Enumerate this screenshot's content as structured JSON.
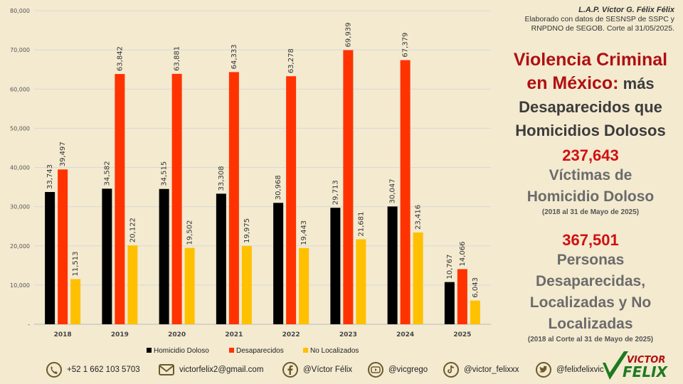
{
  "chart_data": {
    "type": "bar",
    "categories": [
      "2018",
      "2019",
      "2020",
      "2021",
      "2022",
      "2023",
      "2024",
      "2025"
    ],
    "series": [
      {
        "name": "Homicidio Doloso",
        "color": "#000000",
        "values": [
          33743,
          34582,
          34515,
          33308,
          30968,
          29713,
          30047,
          10767
        ],
        "labels": [
          "33,743",
          "34,582",
          "34,515",
          "33,308",
          "30,968",
          "29,713",
          "30,047",
          "10,767"
        ]
      },
      {
        "name": "Desaparecidos",
        "color": "#ff3300",
        "values": [
          39497,
          63842,
          63881,
          64333,
          63278,
          69939,
          67379,
          14066
        ],
        "labels": [
          "39,497",
          "63,842",
          "63,881",
          "64,333",
          "63,278",
          "69,939",
          "67,379",
          "14,066"
        ]
      },
      {
        "name": "No Localizados",
        "color": "#ffc000",
        "values": [
          11513,
          20122,
          19502,
          19975,
          19443,
          21681,
          23416,
          6043
        ],
        "labels": [
          "11,513",
          "20,122",
          "19,502",
          "19,975",
          "19,443",
          "21,681",
          "23,416",
          "6,043"
        ]
      }
    ],
    "ylim": [
      0,
      80000
    ],
    "yticks": [
      0,
      10000,
      20000,
      30000,
      40000,
      50000,
      60000,
      70000,
      80000
    ],
    "ytick_labels": [
      "-",
      "10,000",
      "20,000",
      "30,000",
      "40,000",
      "50,000",
      "60,000",
      "70,000",
      "80,000"
    ],
    "grid": true,
    "legend": "bottom"
  },
  "credit": {
    "author": "L.A.P. Víctor G. Félix Félix",
    "line1": "Elaborado con datos de SESNSP de SSPC y",
    "line2": "RNPDNO de SEGOB. Corte al 31/05/2025."
  },
  "headline": {
    "line1": "Violencia Criminal",
    "line2_red": "en México:",
    "line2_dark": " más",
    "line3": "Desaparecidos que",
    "line4": "Homicidios Dolosos"
  },
  "stat1": {
    "number": "237,643",
    "label1": "Víctimas de",
    "label2": "Homicidio Doloso",
    "note": "(2018 al 31 de Mayo de 2025)"
  },
  "stat2": {
    "number": "367,501",
    "label1": "Personas",
    "label2": "Desaparecidas,",
    "label3": "Localizadas y No",
    "label4": "Localizadas",
    "note": "(2018 al Corte al 31 de Mayo de 2025)"
  },
  "contacts": {
    "phone": "+52 1 662 103 5703",
    "email": "victorfelix2@gmail.com",
    "facebook": "@Víctor Félix",
    "youtube": "@vicgrego",
    "tiktok": "@victor_felixxx",
    "twitter": "@felixfelixvic"
  },
  "logo": {
    "line1": "VICTOR",
    "line2": "FELIX"
  },
  "icons": [
    "whatsapp-icon",
    "email-icon",
    "facebook-icon",
    "youtube-icon",
    "tiktok-icon",
    "twitter-icon",
    "checkmark-logo-icon"
  ]
}
